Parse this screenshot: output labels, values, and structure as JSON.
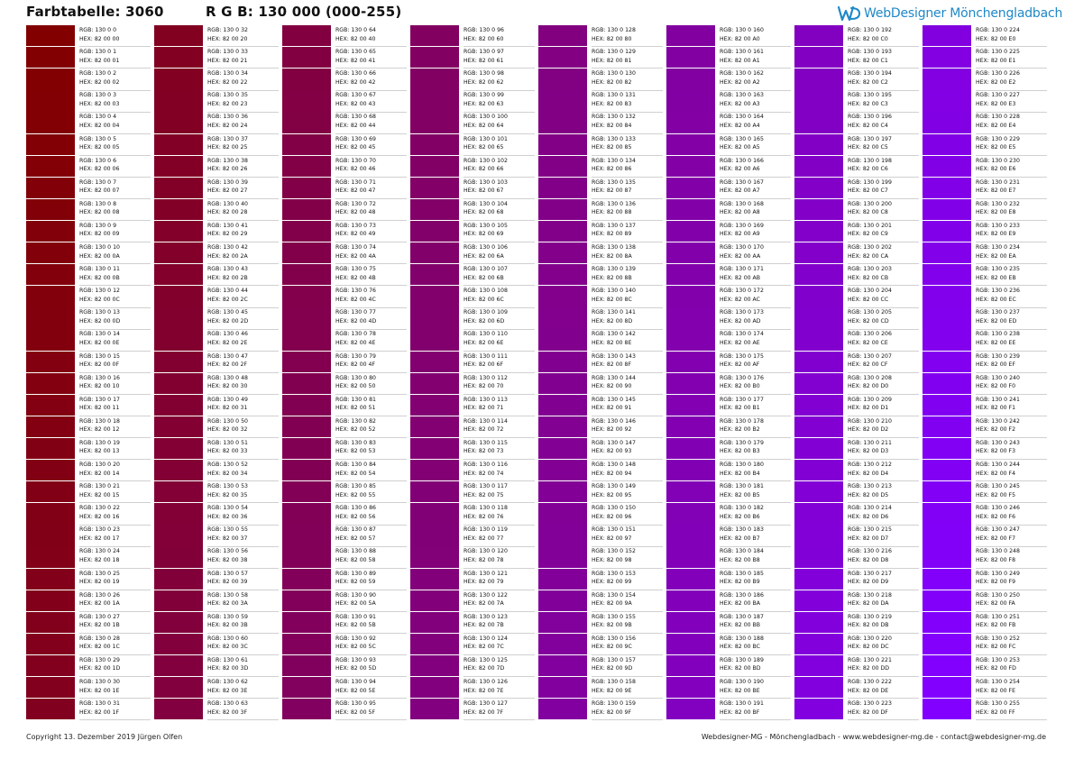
{
  "header": {
    "title": "Farbtabelle: 3060",
    "subtitle": "R G B: 130 000 (000-255)",
    "logo_text": "WebDesigner Mönchengladbach",
    "logo_color": "#1e88c8"
  },
  "table": {
    "red": 130,
    "green": 0,
    "blue_start": 0,
    "blue_end": 255,
    "columns": 8,
    "rows_per_column": 32,
    "rgb_prefix": "RGB: 130 0 ",
    "hex_prefix": "HEX: 82 00 "
  },
  "footer": {
    "copyright": "Copyright 13. Dezember 2019 Jürgen Olfen",
    "contact": "Webdesigner-MG - Mönchengladbach - www.webdesigner-mg.de - contact@webdesigner-mg.de"
  }
}
